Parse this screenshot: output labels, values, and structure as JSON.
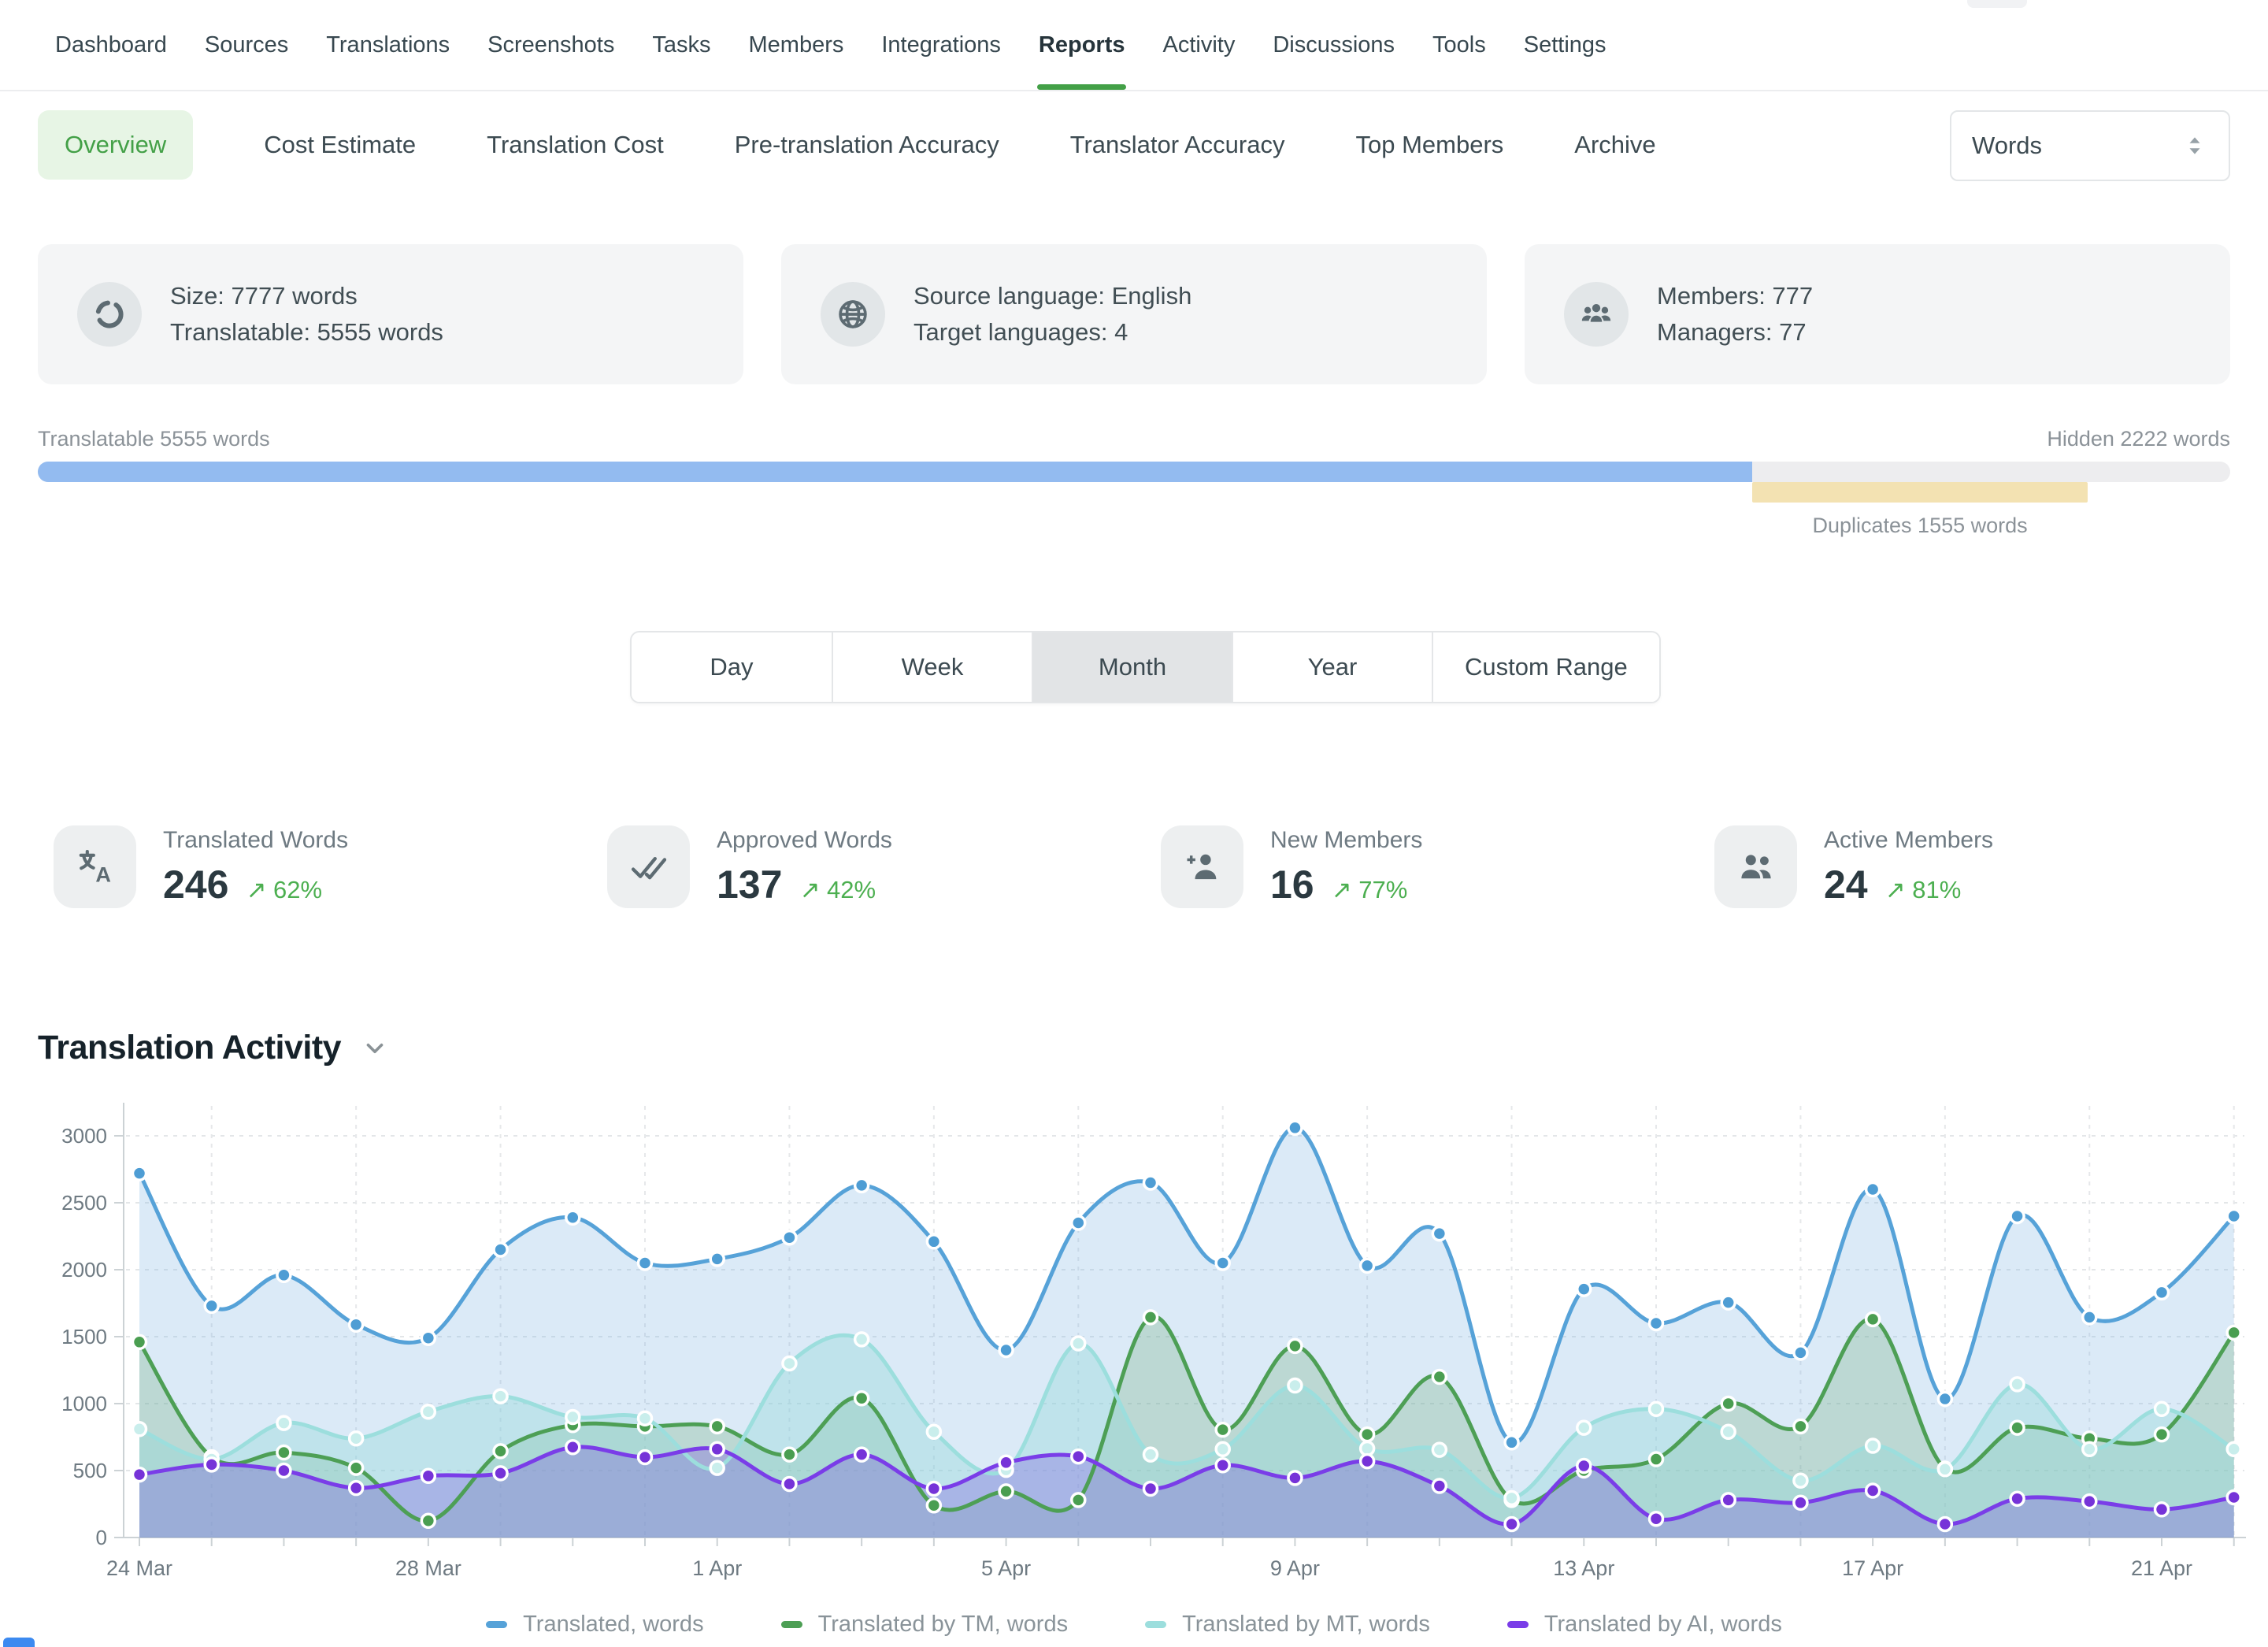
{
  "nav": {
    "items": [
      "Dashboard",
      "Sources",
      "Translations",
      "Screenshots",
      "Tasks",
      "Members",
      "Integrations",
      "Reports",
      "Activity",
      "Discussions",
      "Tools",
      "Settings"
    ],
    "active": "Reports"
  },
  "subnav": {
    "items": [
      "Overview",
      "Cost Estimate",
      "Translation Cost",
      "Pre-translation Accuracy",
      "Translator Accuracy",
      "Top Members",
      "Archive"
    ],
    "active": "Overview",
    "unit_select_value": "Words"
  },
  "info_cards": [
    {
      "icon": "sync-icon",
      "lines": [
        "Size: 7777 words",
        "Translatable: 5555 words"
      ]
    },
    {
      "icon": "globe-icon",
      "lines": [
        "Source language: English",
        "Target languages: 4"
      ]
    },
    {
      "icon": "members-icon",
      "lines": [
        "Members: 777",
        "Managers: 77"
      ]
    }
  ],
  "progress": {
    "left_label": "Translatable 5555 words",
    "right_label": "Hidden 2222 words",
    "duplicates_label": "Duplicates 1555 words",
    "translatable_pct": 78.2,
    "duplicates_start_pct": 78.2,
    "duplicates_width_pct": 15.3,
    "bar_color": "#93bbf0",
    "duplicates_color": "#f3e2b2"
  },
  "range_tabs": {
    "options": [
      "Day",
      "Week",
      "Month",
      "Year",
      "Custom Range"
    ],
    "active": "Month"
  },
  "stats": [
    {
      "icon": "translate-icon",
      "label": "Translated Words",
      "value": "246",
      "delta": "62%",
      "trend": "up"
    },
    {
      "icon": "double-check-icon",
      "label": "Approved Words",
      "value": "137",
      "delta": "42%",
      "trend": "up"
    },
    {
      "icon": "person-add-icon",
      "label": "New Members",
      "value": "16",
      "delta": "77%",
      "trend": "up"
    },
    {
      "icon": "people-icon",
      "label": "Active Members",
      "value": "24",
      "delta": "81%",
      "trend": "up"
    }
  ],
  "delta_arrow": "↗",
  "section_title": "Translation Activity",
  "chart_data": {
    "type": "area",
    "title": "Translation Activity",
    "x": [
      "24 Mar",
      "25 Mar",
      "26 Mar",
      "27 Mar",
      "28 Mar",
      "29 Mar",
      "30 Mar",
      "31 Mar",
      "1 Apr",
      "2 Apr",
      "3 Apr",
      "4 Apr",
      "5 Apr",
      "6 Apr",
      "7 Apr",
      "8 Apr",
      "9 Apr",
      "10 Apr",
      "11 Apr",
      "12 Apr",
      "13 Apr",
      "14 Apr",
      "15 Apr",
      "16 Apr",
      "17 Apr",
      "18 Apr",
      "19 Apr",
      "20 Apr",
      "21 Apr",
      "22 Apr"
    ],
    "x_label_every": 4,
    "ylim": [
      0,
      3200
    ],
    "y_ticks": [
      0,
      500,
      1000,
      1500,
      2000,
      2500,
      3000
    ],
    "grid": true,
    "legend_position": "bottom",
    "series": [
      {
        "name": "Translated, words",
        "color": "#56a2d8",
        "fill": "rgba(125,180,225,0.28)",
        "marker_fill": "#4e9dd4",
        "values": [
          2720,
          1730,
          1960,
          1590,
          1490,
          2150,
          2390,
          2050,
          2080,
          2240,
          2630,
          2210,
          1400,
          2350,
          2650,
          2050,
          3060,
          2030,
          2270,
          710,
          1855,
          1600,
          1755,
          1380,
          2600,
          1035,
          2400,
          1645,
          1830,
          2400
        ]
      },
      {
        "name": "Translated by TM, words",
        "color": "#4d9f55",
        "fill": "rgba(95,165,105,0.25)",
        "marker_fill": "#4a9e51",
        "values": [
          1460,
          600,
          635,
          520,
          125,
          645,
          840,
          830,
          830,
          620,
          1040,
          240,
          345,
          280,
          1645,
          805,
          1430,
          770,
          1200,
          280,
          500,
          585,
          1000,
          830,
          1630,
          515,
          820,
          740,
          770,
          1530
        ]
      },
      {
        "name": "Translated by MT, words",
        "color": "#9cdedd",
        "fill": "rgba(145,215,215,0.38)",
        "marker_fill": "#c9eeec",
        "values": [
          810,
          585,
          855,
          740,
          940,
          1055,
          900,
          890,
          520,
          1300,
          1480,
          790,
          505,
          1450,
          620,
          660,
          1135,
          665,
          655,
          295,
          820,
          960,
          790,
          425,
          685,
          510,
          1145,
          660,
          960,
          660
        ]
      },
      {
        "name": "Translated by AI, words",
        "color": "#7a3de8",
        "fill": "rgba(120,85,220,0.32)",
        "marker_fill": "#7633d8",
        "values": [
          470,
          545,
          500,
          370,
          460,
          480,
          675,
          600,
          660,
          400,
          620,
          365,
          560,
          605,
          365,
          540,
          445,
          570,
          385,
          100,
          535,
          140,
          280,
          260,
          350,
          100,
          290,
          270,
          210,
          300
        ]
      }
    ]
  }
}
